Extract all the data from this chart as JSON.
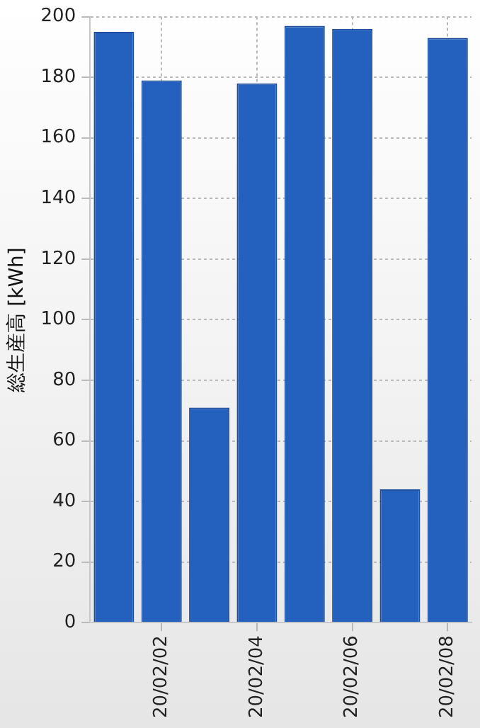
{
  "chart_data": {
    "type": "bar",
    "ylabel": "総生産高 [kWh]",
    "categories": [
      null,
      "20/02/02",
      null,
      "20/02/04",
      null,
      "20/02/06",
      null,
      "20/02/08"
    ],
    "values": [
      195,
      179,
      71,
      178,
      197,
      196,
      44,
      193
    ],
    "color": "#2461bf",
    "ylim": [
      0,
      200
    ],
    "yticks": [
      0,
      20,
      40,
      60,
      80,
      100,
      120,
      140,
      160,
      180,
      200
    ],
    "grid": true
  }
}
